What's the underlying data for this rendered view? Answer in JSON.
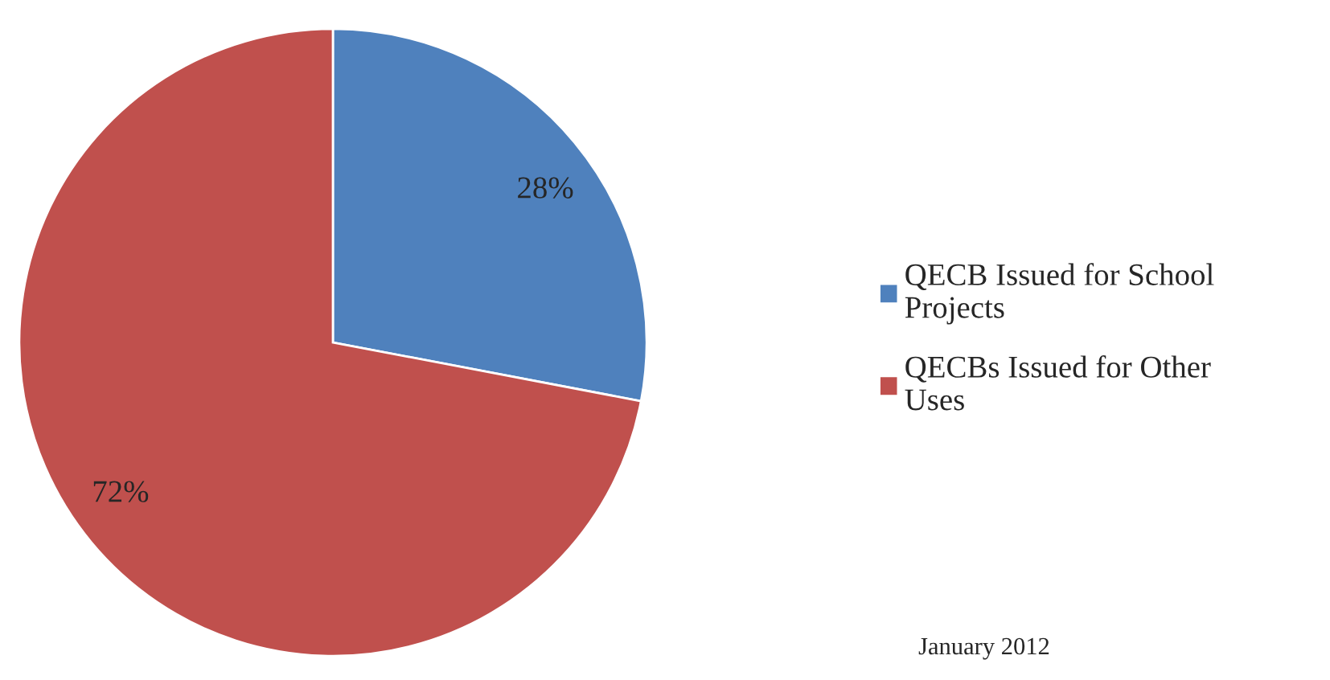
{
  "chart_data": {
    "type": "pie",
    "categories": [
      "QECB Issued for School\nProjects",
      "QECBs Issued for Other\nUses"
    ],
    "values": [
      28,
      72
    ],
    "colors": [
      "#4f81bd",
      "#c0504d"
    ],
    "value_labels": [
      "28%",
      "72%"
    ],
    "legend": "right",
    "annotations": [
      "January 2012"
    ]
  }
}
